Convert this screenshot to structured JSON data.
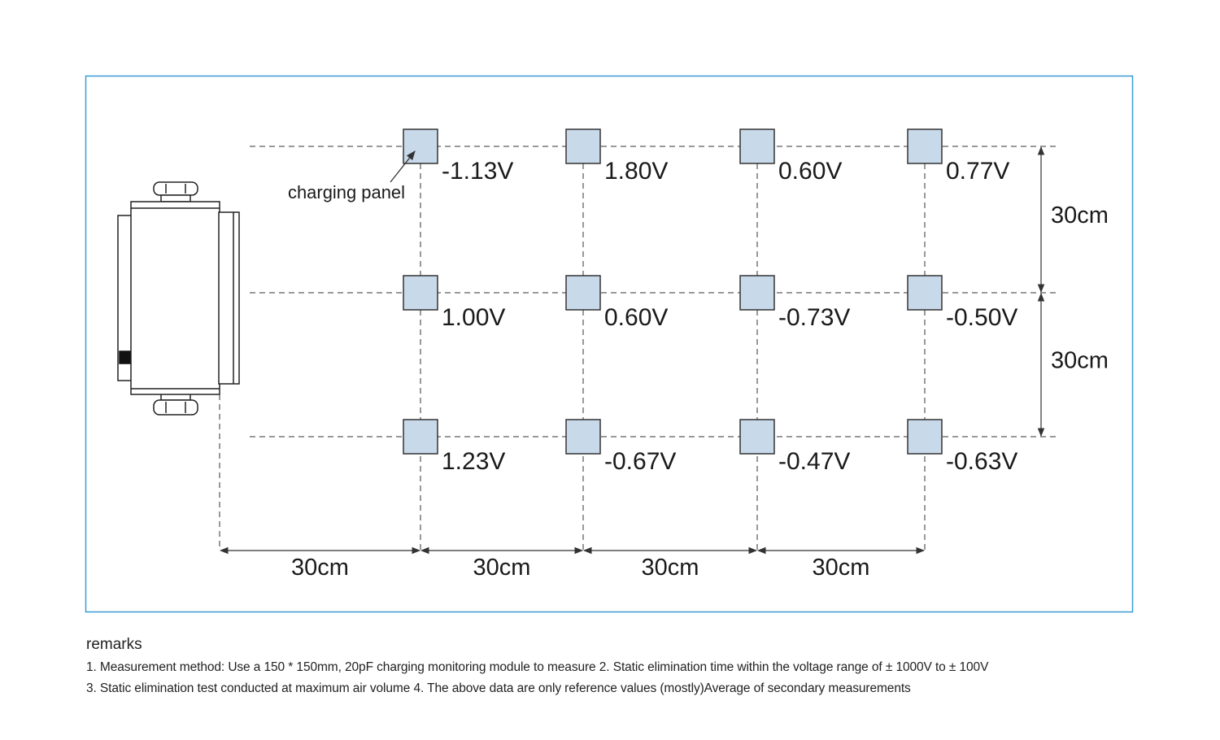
{
  "diagram": {
    "panel_label": "charging panel",
    "readings": [
      [
        "-1.13V",
        "1.80V",
        "0.60V",
        "0.77V"
      ],
      [
        "1.00V",
        "0.60V",
        "-0.73V",
        "-0.50V"
      ],
      [
        "1.23V",
        "-0.67V",
        "-0.47V",
        "-0.63V"
      ]
    ],
    "horizontal_spacings": [
      "30cm",
      "30cm",
      "30cm",
      "30cm"
    ],
    "vertical_spacings": [
      "30cm",
      "30cm"
    ],
    "colors": {
      "frame": "#3a9bd5",
      "panel_fill": "#c8d9ea",
      "line": "#333333"
    }
  },
  "remarks": {
    "title": "remarks",
    "lines": [
      "1. Measurement method: Use a 150 * 150mm, 20pF charging monitoring module to measure 2. Static elimination time within the voltage range of ± 1000V to ± 100V",
      "3. Static elimination test conducted at maximum air volume 4. The above data are only reference values (mostly)Average of secondary measurements"
    ]
  }
}
